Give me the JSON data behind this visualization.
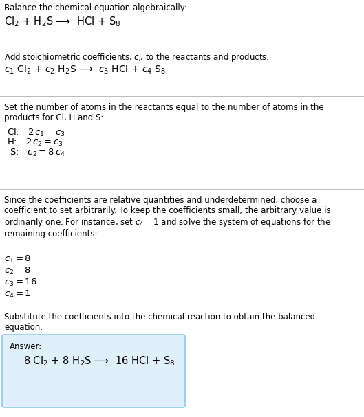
{
  "title_text": "Balance the chemical equation algebraically:",
  "equation1": "Cl$_2$ + H$_2$S ⟶  HCl + S$_8$",
  "section2_title": "Add stoichiometric coefficients, $c_i$, to the reactants and products:",
  "equation2": "$c_1$ Cl$_2$ + $c_2$ H$_2$S ⟶  $c_3$ HCl + $c_4$ S$_8$",
  "section3_title": "Set the number of atoms in the reactants equal to the number of atoms in the\nproducts for Cl, H and S:",
  "equations3": [
    "Cl:   $2\\,c_1 = c_3$",
    "H:   $2\\,c_2 = c_3$",
    " S:   $c_2 = 8\\,c_4$"
  ],
  "section4_title": "Since the coefficients are relative quantities and underdetermined, choose a\ncoefficient to set arbitrarily. To keep the coefficients small, the arbitrary value is\nordinarily one. For instance, set $c_4 = 1$ and solve the system of equations for the\nremaining coefficients:",
  "coefficients": [
    "$c_1 = 8$",
    "$c_2 = 8$",
    "$c_3 = 16$",
    "$c_4 = 1$"
  ],
  "section5_title": "Substitute the coefficients into the chemical reaction to obtain the balanced\nequation:",
  "answer_label": "Answer:",
  "answer_equation": "8 Cl$_2$ + 8 H$_2$S ⟶  16 HCl + S$_8$",
  "bg_color": "#ffffff",
  "text_color": "#000000",
  "box_bg_color": "#dff0fa",
  "box_border_color": "#8ec8e8",
  "divider_color": "#bbbbbb",
  "fs_body": 8.5,
  "fs_eq1": 10.5,
  "fs_eq2": 10.0,
  "fs_eq3": 9.5,
  "fs_coef": 9.5,
  "fs_ans_label": 8.5,
  "fs_ans_eq": 10.5
}
